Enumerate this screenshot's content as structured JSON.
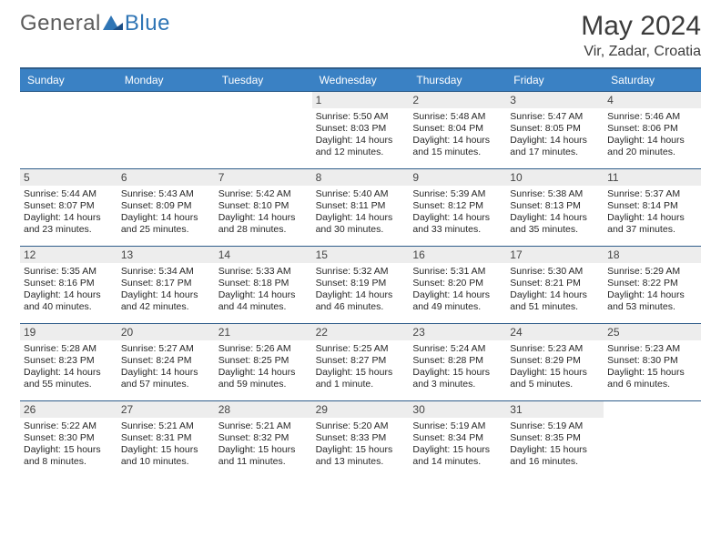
{
  "logo": {
    "word1": "General",
    "word2": "Blue"
  },
  "title": "May 2024",
  "location": "Vir, Zadar, Croatia",
  "day_names": [
    "Sunday",
    "Monday",
    "Tuesday",
    "Wednesday",
    "Thursday",
    "Friday",
    "Saturday"
  ],
  "colors": {
    "header_bg": "#3a81c4",
    "header_border": "#2f5d8a",
    "daynum_bg": "#ededed",
    "logo_gray": "#5b5b5b",
    "logo_blue": "#2f75b5"
  },
  "weeks": [
    [
      null,
      null,
      null,
      {
        "n": "1",
        "sr": "5:50 AM",
        "ss": "8:03 PM",
        "dl": "14 hours and 12 minutes."
      },
      {
        "n": "2",
        "sr": "5:48 AM",
        "ss": "8:04 PM",
        "dl": "14 hours and 15 minutes."
      },
      {
        "n": "3",
        "sr": "5:47 AM",
        "ss": "8:05 PM",
        "dl": "14 hours and 17 minutes."
      },
      {
        "n": "4",
        "sr": "5:46 AM",
        "ss": "8:06 PM",
        "dl": "14 hours and 20 minutes."
      }
    ],
    [
      {
        "n": "5",
        "sr": "5:44 AM",
        "ss": "8:07 PM",
        "dl": "14 hours and 23 minutes."
      },
      {
        "n": "6",
        "sr": "5:43 AM",
        "ss": "8:09 PM",
        "dl": "14 hours and 25 minutes."
      },
      {
        "n": "7",
        "sr": "5:42 AM",
        "ss": "8:10 PM",
        "dl": "14 hours and 28 minutes."
      },
      {
        "n": "8",
        "sr": "5:40 AM",
        "ss": "8:11 PM",
        "dl": "14 hours and 30 minutes."
      },
      {
        "n": "9",
        "sr": "5:39 AM",
        "ss": "8:12 PM",
        "dl": "14 hours and 33 minutes."
      },
      {
        "n": "10",
        "sr": "5:38 AM",
        "ss": "8:13 PM",
        "dl": "14 hours and 35 minutes."
      },
      {
        "n": "11",
        "sr": "5:37 AM",
        "ss": "8:14 PM",
        "dl": "14 hours and 37 minutes."
      }
    ],
    [
      {
        "n": "12",
        "sr": "5:35 AM",
        "ss": "8:16 PM",
        "dl": "14 hours and 40 minutes."
      },
      {
        "n": "13",
        "sr": "5:34 AM",
        "ss": "8:17 PM",
        "dl": "14 hours and 42 minutes."
      },
      {
        "n": "14",
        "sr": "5:33 AM",
        "ss": "8:18 PM",
        "dl": "14 hours and 44 minutes."
      },
      {
        "n": "15",
        "sr": "5:32 AM",
        "ss": "8:19 PM",
        "dl": "14 hours and 46 minutes."
      },
      {
        "n": "16",
        "sr": "5:31 AM",
        "ss": "8:20 PM",
        "dl": "14 hours and 49 minutes."
      },
      {
        "n": "17",
        "sr": "5:30 AM",
        "ss": "8:21 PM",
        "dl": "14 hours and 51 minutes."
      },
      {
        "n": "18",
        "sr": "5:29 AM",
        "ss": "8:22 PM",
        "dl": "14 hours and 53 minutes."
      }
    ],
    [
      {
        "n": "19",
        "sr": "5:28 AM",
        "ss": "8:23 PM",
        "dl": "14 hours and 55 minutes."
      },
      {
        "n": "20",
        "sr": "5:27 AM",
        "ss": "8:24 PM",
        "dl": "14 hours and 57 minutes."
      },
      {
        "n": "21",
        "sr": "5:26 AM",
        "ss": "8:25 PM",
        "dl": "14 hours and 59 minutes."
      },
      {
        "n": "22",
        "sr": "5:25 AM",
        "ss": "8:27 PM",
        "dl": "15 hours and 1 minute."
      },
      {
        "n": "23",
        "sr": "5:24 AM",
        "ss": "8:28 PM",
        "dl": "15 hours and 3 minutes."
      },
      {
        "n": "24",
        "sr": "5:23 AM",
        "ss": "8:29 PM",
        "dl": "15 hours and 5 minutes."
      },
      {
        "n": "25",
        "sr": "5:23 AM",
        "ss": "8:30 PM",
        "dl": "15 hours and 6 minutes."
      }
    ],
    [
      {
        "n": "26",
        "sr": "5:22 AM",
        "ss": "8:30 PM",
        "dl": "15 hours and 8 minutes."
      },
      {
        "n": "27",
        "sr": "5:21 AM",
        "ss": "8:31 PM",
        "dl": "15 hours and 10 minutes."
      },
      {
        "n": "28",
        "sr": "5:21 AM",
        "ss": "8:32 PM",
        "dl": "15 hours and 11 minutes."
      },
      {
        "n": "29",
        "sr": "5:20 AM",
        "ss": "8:33 PM",
        "dl": "15 hours and 13 minutes."
      },
      {
        "n": "30",
        "sr": "5:19 AM",
        "ss": "8:34 PM",
        "dl": "15 hours and 14 minutes."
      },
      {
        "n": "31",
        "sr": "5:19 AM",
        "ss": "8:35 PM",
        "dl": "15 hours and 16 minutes."
      },
      null
    ]
  ],
  "labels": {
    "sunrise": "Sunrise: ",
    "sunset": "Sunset: ",
    "daylight": "Daylight: "
  }
}
